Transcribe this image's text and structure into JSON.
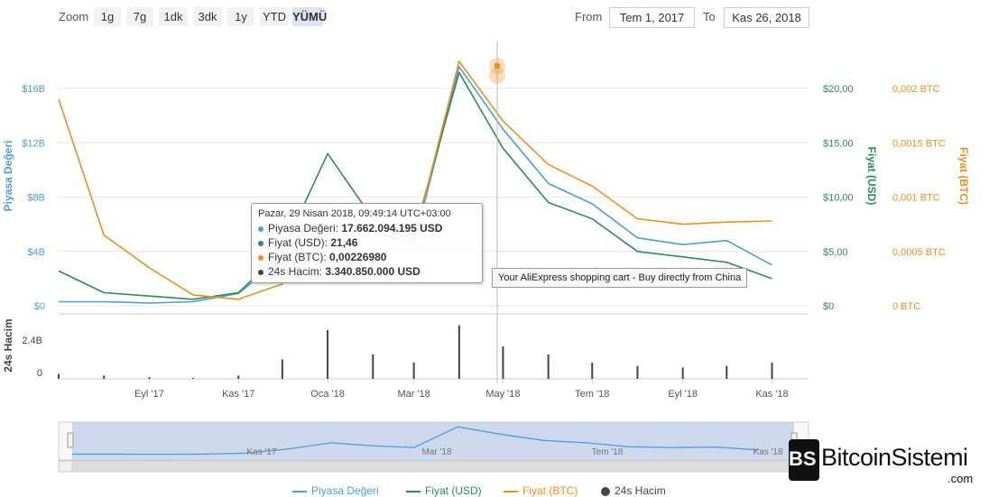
{
  "toolbar": {
    "zoom_label": "Zoom",
    "zoom_buttons": [
      "1g",
      "7g",
      "1dk",
      "3dk",
      "1y",
      "YTD",
      "YÜMÜ"
    ],
    "active_zoom": "YÜMÜ",
    "from_label": "From",
    "from_value": "Tem 1, 2017",
    "to_label": "To",
    "to_value": "Kas 26, 2018"
  },
  "colors": {
    "market_cap": "#4a9fd8",
    "price_usd": "#2e8b57",
    "price_btc": "#f0901c",
    "volume": "#444444",
    "navigator_fill": "#c3cfe8"
  },
  "tooltip": {
    "date": "Pazar, 29 Nisan 2018, 09:49:14 UTC+03:00",
    "rows": [
      {
        "label": "Piyasa Değeri:",
        "value": "17.662.094.195 USD"
      },
      {
        "label": "Fiyat (USD):",
        "value": "21,46"
      },
      {
        "label": "Fiyat (BTC):",
        "value": "0,00226980"
      },
      {
        "label": "24s Hacim:",
        "value": "3.340.850.000 USD"
      }
    ]
  },
  "hover_text": "Your AliExpress shopping cart - Buy directly from China",
  "logo": {
    "name": "BitcoinSistemi",
    "suffix": ".com",
    "mark": "BS"
  },
  "chart_data": {
    "type": "line",
    "x": [
      "2017-07",
      "2017-08",
      "2017-09",
      "2017-10",
      "2017-11",
      "2017-12",
      "2018-01",
      "2018-02",
      "2018-03",
      "2018-04",
      "2018-05",
      "2018-06",
      "2018-07",
      "2018-08",
      "2018-09",
      "2018-10",
      "2018-11"
    ],
    "x_tick_labels": [
      "Eyl '17",
      "Kas '17",
      "Oca '18",
      "Mar '18",
      "May '18",
      "Tem '18",
      "Eyl '18",
      "Kas '18"
    ],
    "x_tick_dates": [
      "2017-09",
      "2017-11",
      "2018-01",
      "2018-03",
      "2018-05",
      "2018-07",
      "2018-09",
      "2018-11"
    ],
    "series": [
      {
        "name": "Piyasa Değeri",
        "axis": "left",
        "unit": "USD",
        "values": [
          300000000.0,
          300000000.0,
          200000000.0,
          300000000.0,
          900000000.0,
          3500000000.0,
          7500000000.0,
          5500000000.0,
          4500000000.0,
          17600000000.0,
          13000000000.0,
          9000000000.0,
          7500000000.0,
          5000000000.0,
          4500000000.0,
          4800000000.0,
          3000000000.0
        ]
      },
      {
        "name": "Fiyat (USD)",
        "axis": "right1",
        "unit": "USD",
        "values": [
          3.2,
          1.2,
          0.9,
          0.6,
          1.2,
          5.0,
          14.0,
          8.0,
          6.5,
          21.46,
          14.5,
          9.5,
          8.0,
          5.0,
          4.5,
          4.0,
          2.5
        ]
      },
      {
        "name": "Fiyat (BTC)",
        "axis": "right2",
        "unit": "BTC",
        "values": [
          0.0019,
          0.00065,
          0.00035,
          0.0001,
          6e-05,
          0.0002,
          0.00085,
          0.00075,
          0.0006,
          0.00227,
          0.0017,
          0.0013,
          0.0011,
          0.0008,
          0.00075,
          0.00077,
          0.00078
        ]
      },
      {
        "name": "24s Hacim",
        "axis": "volume",
        "unit": "USD",
        "values": [
          300000000.0,
          200000000.0,
          100000000.0,
          50000000.0,
          200000000.0,
          1200000000.0,
          3000000000.0,
          1500000000.0,
          1000000000.0,
          3300000000.0,
          2000000000.0,
          1500000000.0,
          1000000000.0,
          800000000.0,
          700000000.0,
          800000000.0,
          1000000000.0
        ]
      }
    ],
    "y_left": {
      "title": "Piyasa Değeri",
      "ticks": [
        "$0",
        "$4B",
        "$8B",
        "$12B",
        "$16B"
      ],
      "range": [
        0,
        16000000000
      ]
    },
    "y_right1": {
      "title": "Fiyat (USD)",
      "ticks": [
        "$0",
        "$5,00",
        "$10,00",
        "$15,00",
        "$20,00"
      ],
      "range": [
        0,
        20
      ]
    },
    "y_right2": {
      "title": "Fiyat (BTC)",
      "ticks": [
        "0 BTC",
        "0,0005 BTC",
        "0,001 BTC",
        "0,0015 BTC",
        "0,002 BTC"
      ],
      "range": [
        0,
        0.002
      ]
    },
    "y_volume": {
      "title": "24s Hacim",
      "ticks": [
        "0",
        "2.4B"
      ],
      "range": [
        0,
        4000000000
      ]
    },
    "navigator": {
      "labels": [
        "Kas '17",
        "Mar '18",
        "Tem '18",
        "Kas '18"
      ]
    },
    "legend": [
      "Piyasa Değeri",
      "Fiyat (USD)",
      "Fiyat (BTC)",
      "24s Hacim"
    ],
    "legend_position": "bottom",
    "grid": true
  }
}
